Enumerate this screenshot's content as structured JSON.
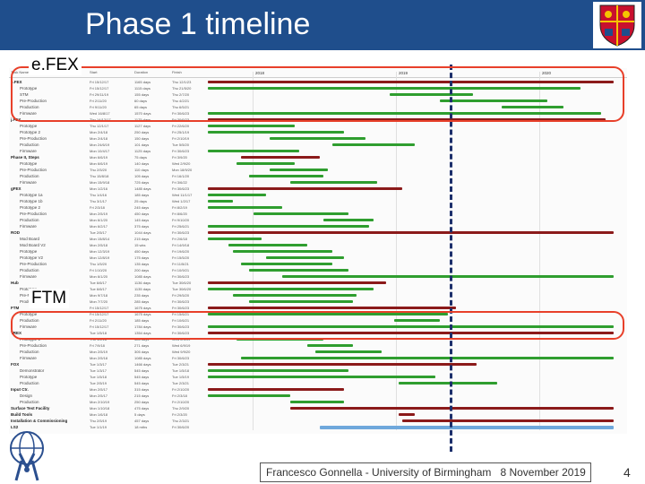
{
  "title": "Phase 1 timeline",
  "callouts": {
    "efex": "e.FEX",
    "ftm": "FTM"
  },
  "footer": {
    "author": "Francesco Gonnella - University of Birmingham",
    "date": "8 November 2019",
    "page": "4"
  },
  "colors": {
    "title_bar": "#1f4e8c",
    "highlight": "#e8402a",
    "task_bar": "#2f9e2f",
    "summary_bar": "#8b1a1a",
    "today_marker": "#1c2f6b",
    "final_bar": "#6fa8dc"
  },
  "gantt": {
    "years": [
      "2018",
      "2019",
      "2020"
    ],
    "rows": [
      {
        "name": "e.FEX",
        "kind": "group",
        "start": "Fri 15/12/17",
        "dur": "1165 days",
        "end": "Thu 12/1/23",
        "s": 0.0,
        "e": 0.98
      },
      {
        "name": "Prototype",
        "kind": "task",
        "start": "Fri 15/12/17",
        "dur": "1115 days",
        "end": "Thu 21/5/20",
        "s": 0.0,
        "e": 0.9
      },
      {
        "name": "STM",
        "kind": "task",
        "start": "Fri 29/11/19",
        "dur": "155 days",
        "end": "Thu 2/7/20",
        "s": 0.44,
        "e": 0.64
      },
      {
        "name": "Pre-Production",
        "kind": "task",
        "start": "Fri 2/11/20",
        "dur": "60 days",
        "end": "Thu 4/2/21",
        "s": 0.56,
        "e": 0.82
      },
      {
        "name": "Production",
        "kind": "task",
        "start": "Fri 9/11/20",
        "dur": "65 days",
        "end": "Thu 6/5/21",
        "s": 0.71,
        "e": 0.86
      },
      {
        "name": "Firmware",
        "kind": "task",
        "start": "Wed 16/8/17",
        "dur": "1570 days",
        "end": "Fri 30/6/23",
        "s": 0.0,
        "e": 0.95
      },
      {
        "name": "j.FEX",
        "kind": "group",
        "start": "Thu 14/12/17",
        "dur": "1175 days",
        "end": "Fri 30/6/23",
        "s": 0.0,
        "e": 0.96
      },
      {
        "name": "Prototype",
        "kind": "task",
        "start": "Thu 12/1/17",
        "dur": "1127 days",
        "end": "Fri 22/6/20",
        "s": 0.0,
        "e": 0.21
      },
      {
        "name": "Prototype 2",
        "kind": "task",
        "start": "Mon 2/4/18",
        "dur": "250 days",
        "end": "Fri 25/1/19",
        "s": 0.0,
        "e": 0.33
      },
      {
        "name": "Pre-Production",
        "kind": "task",
        "start": "Mon 2/4/18",
        "dur": "150 days",
        "end": "Fri 2/10/19",
        "s": 0.15,
        "e": 0.38
      },
      {
        "name": "Production",
        "kind": "task",
        "start": "Mon 24/6/19",
        "dur": "101 days",
        "end": "Tue 5/5/20",
        "s": 0.3,
        "e": 0.5
      },
      {
        "name": "Firmware",
        "kind": "task",
        "start": "Mon 10/4/17",
        "dur": "1125 days",
        "end": "Fri 30/6/23",
        "s": 0.0,
        "e": 0.22
      },
      {
        "name": "Phase II, Steps",
        "kind": "group",
        "start": "Mon 6/6/19",
        "dur": "75 days",
        "end": "Fri 3/9/20",
        "s": 0.08,
        "e": 0.27
      },
      {
        "name": "Prototype",
        "kind": "task",
        "start": "Mon 6/6/19",
        "dur": "140 days",
        "end": "Wed 2/9/20",
        "s": 0.07,
        "e": 0.21
      },
      {
        "name": "Pre-Production",
        "kind": "task",
        "start": "Thu 2/5/20",
        "dur": "110 days",
        "end": "Mon 18/9/20",
        "s": 0.15,
        "e": 0.29
      },
      {
        "name": "Production",
        "kind": "task",
        "start": "Thu 15/8/18",
        "dur": "105 days",
        "end": "Fri 16/1/20",
        "s": 0.1,
        "e": 0.28
      },
      {
        "name": "Firmware",
        "kind": "task",
        "start": "Mon 15/9/18",
        "dur": "725 days",
        "end": "Fri 3/6/22",
        "s": 0.2,
        "e": 0.41
      },
      {
        "name": "gFEX",
        "kind": "group",
        "start": "Mon 1/2/16",
        "dur": "1485 days",
        "end": "Fri 30/6/23",
        "s": 0.0,
        "e": 0.47
      },
      {
        "name": "Prototype 1a",
        "kind": "task",
        "start": "Thu 1/4/16",
        "dur": "185 days",
        "end": "Wed 11/1/17",
        "s": 0.0,
        "e": 0.14
      },
      {
        "name": "Prototype 1b",
        "kind": "task",
        "start": "Thu 3/1/17",
        "dur": "25 days",
        "end": "Wed 1/2/17",
        "s": 0.0,
        "e": 0.06
      },
      {
        "name": "Prototype 2",
        "kind": "task",
        "start": "Fri 2/3/18",
        "dur": "245 days",
        "end": "Fri 8/2/19",
        "s": 0.0,
        "e": 0.18
      },
      {
        "name": "Pre-Production",
        "kind": "task",
        "start": "Mon 2/5/19",
        "dur": "450 days",
        "end": "Fri 8/6/20",
        "s": 0.11,
        "e": 0.34
      },
      {
        "name": "Production",
        "kind": "task",
        "start": "Mon 6/1/20",
        "dur": "145 days",
        "end": "Fri 9/10/20",
        "s": 0.28,
        "e": 0.4
      },
      {
        "name": "Firmware",
        "kind": "task",
        "start": "Mon 6/2/17",
        "dur": "375 days",
        "end": "Fri 25/6/21",
        "s": 0.0,
        "e": 0.39
      },
      {
        "name": "ROD",
        "kind": "group",
        "start": "Tue 2/5/17",
        "dur": "1044 days",
        "end": "Fri 30/6/23",
        "s": 0.0,
        "e": 0.98
      },
      {
        "name": "Mod Board",
        "kind": "task",
        "start": "Mon 15/8/14",
        "dur": "215 days",
        "end": "Fri 2/6/18",
        "s": 0.0,
        "e": 0.13
      },
      {
        "name": "Mod Board V2",
        "kind": "task",
        "start": "Mon 2/5/18",
        "dur": "15 wks",
        "end": "Fri 14/9/18",
        "s": 0.05,
        "e": 0.24
      },
      {
        "name": "Prototype",
        "kind": "task",
        "start": "Mon 12/3/19",
        "dur": "450 days",
        "end": "Fri 19/6/20",
        "s": 0.06,
        "e": 0.3
      },
      {
        "name": "Prototype V2",
        "kind": "task",
        "start": "Mon 12/8/19",
        "dur": "175 days",
        "end": "Fri 15/5/20",
        "s": 0.14,
        "e": 0.33
      },
      {
        "name": "Pre-Production",
        "kind": "task",
        "start": "Thu 1/5/20",
        "dur": "135 days",
        "end": "Fri 11/5/21",
        "s": 0.08,
        "e": 0.3
      },
      {
        "name": "Production",
        "kind": "task",
        "start": "Fri 1/10/20",
        "dur": "200 days",
        "end": "Fri 10/9/21",
        "s": 0.1,
        "e": 0.34
      },
      {
        "name": "Firmware",
        "kind": "task",
        "start": "Mon 6/1/20",
        "dur": "1085 days",
        "end": "Fri 30/6/23",
        "s": 0.18,
        "e": 0.98
      },
      {
        "name": "Hub",
        "kind": "group",
        "start": "Tue 6/6/17",
        "dur": "1136 days",
        "end": "Tue 30/6/20",
        "s": 0.0,
        "e": 0.43
      },
      {
        "name": "Prototype",
        "kind": "task",
        "start": "Tue 6/6/17",
        "dur": "1135 days",
        "end": "Tue 30/6/20",
        "s": 0.0,
        "e": 0.4
      },
      {
        "name": "Pre-Production",
        "kind": "task",
        "start": "Mon 9/7/18",
        "dur": "235 days",
        "end": "Fri 29/5/20",
        "s": 0.06,
        "e": 0.36
      },
      {
        "name": "Production",
        "kind": "task",
        "start": "Mon 7/7/20",
        "dur": "285 days",
        "end": "Fri 30/6/23",
        "s": 0.1,
        "e": 0.35
      },
      {
        "name": "FTM",
        "kind": "group",
        "start": "Fri 15/12/17",
        "dur": "1675 days",
        "end": "Fri 30/6/23",
        "s": 0.0,
        "e": 0.6
      },
      {
        "name": "Prototype",
        "kind": "task",
        "start": "Fri 15/12/17",
        "dur": "1675 days",
        "end": "Fri 15/6/21",
        "s": 0.0,
        "e": 0.58
      },
      {
        "name": "Production",
        "kind": "task",
        "start": "Fri 2/11/20",
        "dur": "185 days",
        "end": "Fri 10/6/21",
        "s": 0.45,
        "e": 0.56
      },
      {
        "name": "Firmware",
        "kind": "task",
        "start": "Fri 15/12/17",
        "dur": "1784 days",
        "end": "Fri 30/6/23",
        "s": 0.0,
        "e": 0.98
      },
      {
        "name": "TREX",
        "kind": "group",
        "start": "Tue 1/5/18",
        "dur": "1354 days",
        "end": "Fri 30/6/23",
        "s": 0.0,
        "e": 0.98
      },
      {
        "name": "Prototype 1",
        "kind": "task",
        "start": "Thu 1/2/18",
        "dur": "385 days",
        "end": "Wed 2/5/19",
        "s": 0.07,
        "e": 0.28
      },
      {
        "name": "Pre-Production",
        "kind": "task",
        "start": "Fri 7/9/18",
        "dur": "271 days",
        "end": "Wed 6/9/19",
        "s": 0.24,
        "e": 0.35
      },
      {
        "name": "Production",
        "kind": "task",
        "start": "Mon 2/5/19",
        "dur": "305 days",
        "end": "Wed 9/9/20",
        "s": 0.26,
        "e": 0.42
      },
      {
        "name": "Firmware",
        "kind": "task",
        "start": "Mon 2/5/18",
        "dur": "1085 days",
        "end": "Fri 30/6/23",
        "s": 0.08,
        "e": 0.98
      },
      {
        "name": "FOX",
        "kind": "group",
        "start": "Tue 1/3/17",
        "dur": "1466 days",
        "end": "Tue 2/3/21",
        "s": 0.0,
        "e": 0.65
      },
      {
        "name": "Demonstrator",
        "kind": "task",
        "start": "Tue 1/3/17",
        "dur": "545 days",
        "end": "Tue 1/5/18",
        "s": 0.0,
        "e": 0.34
      },
      {
        "name": "Prototype",
        "kind": "task",
        "start": "Tue 1/5/18",
        "dur": "545 days",
        "end": "Tue 1/5/19",
        "s": 0.0,
        "e": 0.55
      },
      {
        "name": "Production",
        "kind": "task",
        "start": "Tue 2/5/19",
        "dur": "545 days",
        "end": "Tue 2/3/21",
        "s": 0.46,
        "e": 0.7
      },
      {
        "name": "Input Ctr.",
        "kind": "group",
        "start": "Mon 2/5/17",
        "dur": "315 days",
        "end": "Fri 2/10/20",
        "s": 0.0,
        "e": 0.33
      },
      {
        "name": "Design",
        "kind": "task",
        "start": "Mon 2/5/17",
        "dur": "215 days",
        "end": "Fri 2/3/18",
        "s": 0.0,
        "e": 0.2
      },
      {
        "name": "Production",
        "kind": "task",
        "start": "Mon 2/10/19",
        "dur": "250 days",
        "end": "Fri 2/10/20",
        "s": 0.2,
        "e": 0.33
      },
      {
        "name": "Surface Test Facility",
        "kind": "group",
        "start": "Mon 1/10/18",
        "dur": "475 days",
        "end": "Thu 2/9/20",
        "s": 0.2,
        "e": 0.98
      },
      {
        "name": "Build Tools",
        "kind": "group",
        "start": "Mon 1/6/18",
        "dur": "5 days",
        "end": "Fri 2/3/20",
        "s": 0.46,
        "e": 0.5
      },
      {
        "name": "Installation & Commissioning",
        "kind": "group",
        "start": "Thu 2/5/19",
        "dur": "457 days",
        "end": "Thu 2/3/21",
        "s": 0.47,
        "e": 0.98
      },
      {
        "name": "LS2",
        "kind": "final",
        "start": "Tue 1/1/19",
        "dur": "18 mths",
        "end": "Fri 30/6/20",
        "s": 0.27,
        "e": 0.98
      }
    ]
  }
}
